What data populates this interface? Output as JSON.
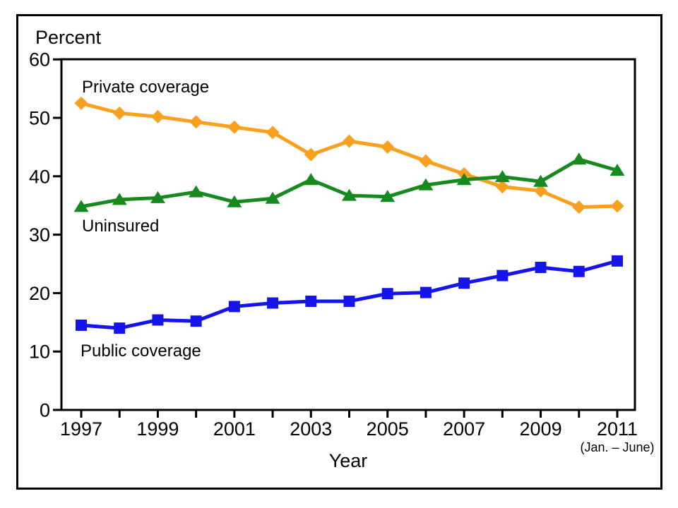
{
  "figure": {
    "y_axis_title": "Percent",
    "x_note": "(Jan. – June)"
  },
  "colors": {
    "private": "#F9A11E",
    "uninsured": "#168A1E",
    "public": "#1414EB",
    "axis": "#000000",
    "background": "#FFFFFF"
  },
  "chart_data": {
    "type": "line",
    "title": "",
    "xlabel": "Year",
    "ylabel": "Percent",
    "x": [
      1997,
      1998,
      1999,
      2000,
      2001,
      2002,
      2003,
      2004,
      2005,
      2006,
      2007,
      2008,
      2009,
      2010,
      2011
    ],
    "x_tick_labels": [
      "1997",
      "1999",
      "2001",
      "2003",
      "2005",
      "2007",
      "2009",
      "2011"
    ],
    "x_note": "(Jan. – June)",
    "y_ticks": [
      0,
      10,
      20,
      30,
      40,
      50,
      60
    ],
    "ylim": [
      0,
      60
    ],
    "grid": false,
    "legend_position": "inline-labels",
    "series": [
      {
        "name": "Private coverage",
        "marker": "diamond",
        "color_key": "private",
        "values": [
          52.5,
          50.8,
          50.2,
          49.3,
          48.4,
          47.5,
          43.7,
          46.0,
          45.0,
          42.6,
          40.4,
          38.2,
          37.5,
          34.7,
          34.9
        ]
      },
      {
        "name": "Uninsured",
        "marker": "triangle",
        "color_key": "uninsured",
        "values": [
          34.8,
          36.0,
          36.3,
          37.3,
          35.6,
          36.2,
          39.4,
          36.7,
          36.5,
          38.5,
          39.4,
          39.9,
          39.1,
          42.9,
          41.0
        ]
      },
      {
        "name": "Public coverage",
        "marker": "square",
        "color_key": "public",
        "values": [
          14.5,
          14.0,
          15.4,
          15.2,
          17.7,
          18.3,
          18.6,
          18.6,
          19.9,
          20.1,
          21.7,
          23.0,
          24.4,
          23.7,
          25.5
        ]
      }
    ]
  }
}
